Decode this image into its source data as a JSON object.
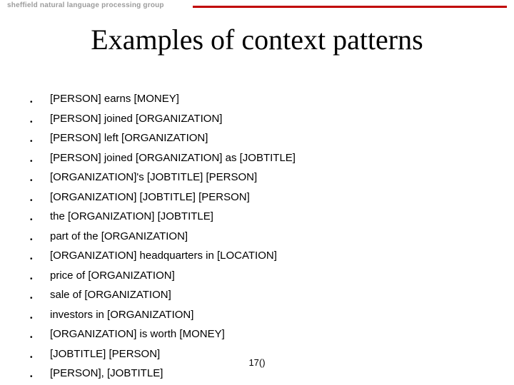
{
  "header": {
    "group_text": "sheffield natural language processing group",
    "line_color": "#c00000"
  },
  "title": "Examples of context patterns",
  "bullets": [
    "[PERSON] earns [MONEY]",
    "[PERSON] joined [ORGANIZATION]",
    "[PERSON] left [ORGANIZATION]",
    "[PERSON] joined [ORGANIZATION] as [JOBTITLE]",
    "[ORGANIZATION]'s [JOBTITLE] [PERSON]",
    "[ORGANIZATION] [JOBTITLE] [PERSON]",
    "the [ORGANIZATION] [JOBTITLE]",
    "part of the [ORGANIZATION]",
    "[ORGANIZATION] headquarters in [LOCATION]",
    "price of [ORGANIZATION]",
    "sale of [ORGANIZATION]",
    "investors in [ORGANIZATION]",
    "[ORGANIZATION] is worth [MONEY]",
    "[JOBTITLE] [PERSON]",
    "[PERSON], [JOBTITLE]"
  ],
  "footer": "17()",
  "style": {
    "title_fontsize": 40,
    "title_font": "Times New Roman",
    "body_fontsize": 15,
    "body_font": "Verdana",
    "bullet_char": "•",
    "background_color": "#ffffff",
    "text_color": "#000000",
    "header_text_color": "#9c9c9c"
  }
}
